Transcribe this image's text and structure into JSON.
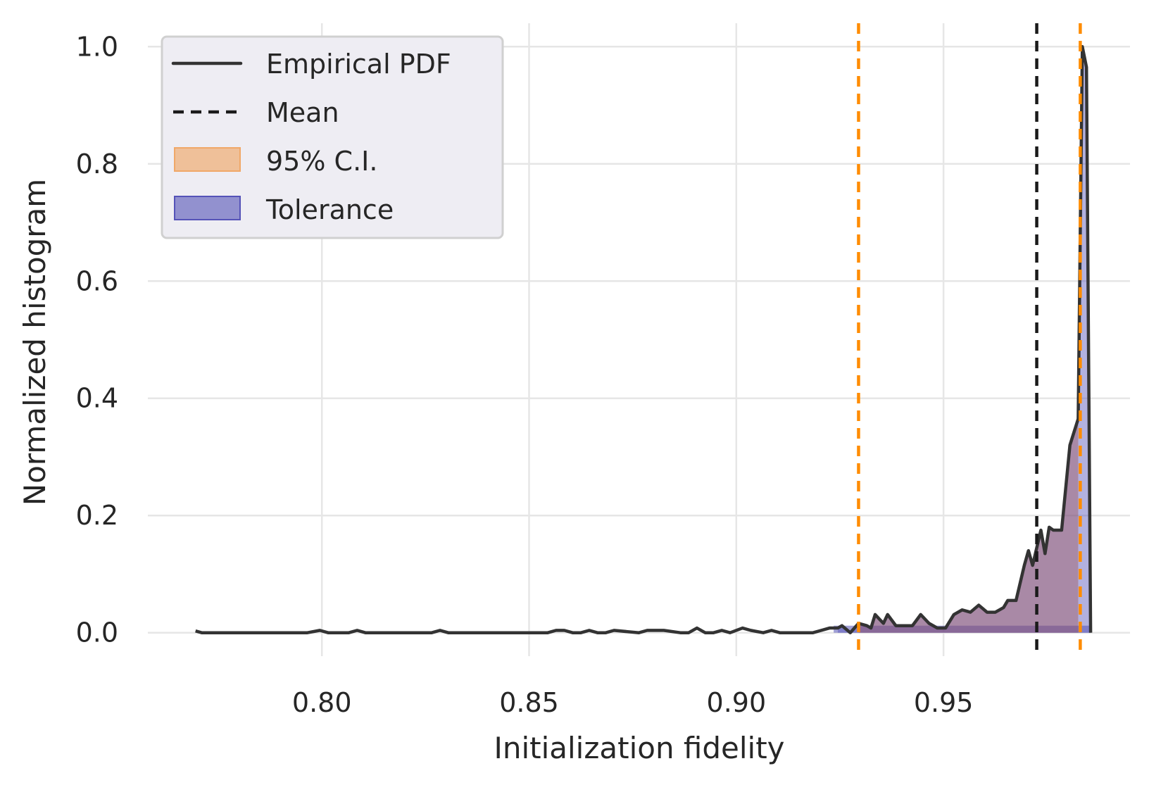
{
  "chart_data": {
    "type": "line",
    "title": "",
    "xlabel": "Initialization fidelity",
    "ylabel": "Normalized histogram",
    "xlim": [
      0.758,
      0.995
    ],
    "ylim": [
      -0.04,
      1.04
    ],
    "x_ticks": [
      "0.80",
      "0.85",
      "0.90",
      "0.95"
    ],
    "x_tick_values": [
      0.8,
      0.85,
      0.9,
      0.95
    ],
    "y_ticks": [
      "0.0",
      "0.2",
      "0.4",
      "0.6",
      "0.8",
      "1.0"
    ],
    "y_tick_values": [
      0.0,
      0.2,
      0.4,
      0.6,
      0.8,
      1.0
    ],
    "grid": true,
    "legend_position": "upper-left",
    "legend": [
      {
        "label": "Empirical PDF",
        "kind": "line"
      },
      {
        "label": "Mean",
        "kind": "dashed"
      },
      {
        "label": "95% C.I.",
        "kind": "patch"
      },
      {
        "label": "Tolerance",
        "kind": "patch"
      }
    ],
    "colors": {
      "pdf_line": "#333333",
      "mean_line": "#1a1a1a",
      "ci_lines": "#ff8c00",
      "ci_fill": "#f0a868",
      "tolerance_fill": "#5553b8",
      "grid": "#e6e6e6",
      "legend_bg": "#eeedf3"
    },
    "series": [
      {
        "name": "Empirical PDF",
        "x": [
          0.7695,
          0.771,
          0.7775,
          0.7855,
          0.7965,
          0.7995,
          0.8015,
          0.8065,
          0.8085,
          0.8105,
          0.8175,
          0.8265,
          0.8285,
          0.8305,
          0.8435,
          0.8545,
          0.8565,
          0.8585,
          0.8605,
          0.8625,
          0.8645,
          0.8665,
          0.8685,
          0.8705,
          0.8765,
          0.8785,
          0.8805,
          0.8825,
          0.8865,
          0.8885,
          0.8905,
          0.8925,
          0.8945,
          0.8965,
          0.8985,
          0.9015,
          0.9035,
          0.9065,
          0.9085,
          0.9105,
          0.9125,
          0.9185,
          0.9205,
          0.9225,
          0.9245,
          0.9255,
          0.9275,
          0.9295,
          0.9315,
          0.9325,
          0.9335,
          0.9355,
          0.9365,
          0.9385,
          0.9425,
          0.9445,
          0.9465,
          0.9485,
          0.9505,
          0.9525,
          0.9545,
          0.9565,
          0.9585,
          0.9605,
          0.9625,
          0.9645,
          0.9655,
          0.9675,
          0.9695,
          0.9705,
          0.9715,
          0.9735,
          0.9745,
          0.9755,
          0.9765,
          0.9785,
          0.9805,
          0.9825,
          0.9835,
          0.9845,
          0.9855
        ],
        "y": [
          0.003,
          0.0,
          0.0,
          0.0,
          0.0,
          0.004,
          0.0,
          0.0,
          0.004,
          0.0,
          0.0,
          0.0,
          0.004,
          0.0,
          0.0,
          0.0,
          0.004,
          0.004,
          0.0,
          0.0,
          0.004,
          0.0,
          0.0,
          0.004,
          0.0,
          0.004,
          0.004,
          0.004,
          0.0,
          0.0,
          0.008,
          0.0,
          0.0,
          0.004,
          0.0,
          0.008,
          0.004,
          0.0,
          0.004,
          0.0,
          0.0,
          0.0,
          0.004,
          0.008,
          0.008,
          0.012,
          0.0,
          0.016,
          0.012,
          0.008,
          0.031,
          0.016,
          0.031,
          0.012,
          0.012,
          0.031,
          0.016,
          0.008,
          0.008,
          0.031,
          0.039,
          0.035,
          0.047,
          0.035,
          0.035,
          0.043,
          0.055,
          0.055,
          0.115,
          0.14,
          0.115,
          0.175,
          0.135,
          0.18,
          0.175,
          0.175,
          0.32,
          0.365,
          1.0,
          0.965,
          0.0
        ]
      }
    ],
    "mean": 0.9725,
    "ci_95": [
      0.9295,
      0.983
    ],
    "tolerance_range": [
      0.9235,
      0.9855
    ]
  }
}
